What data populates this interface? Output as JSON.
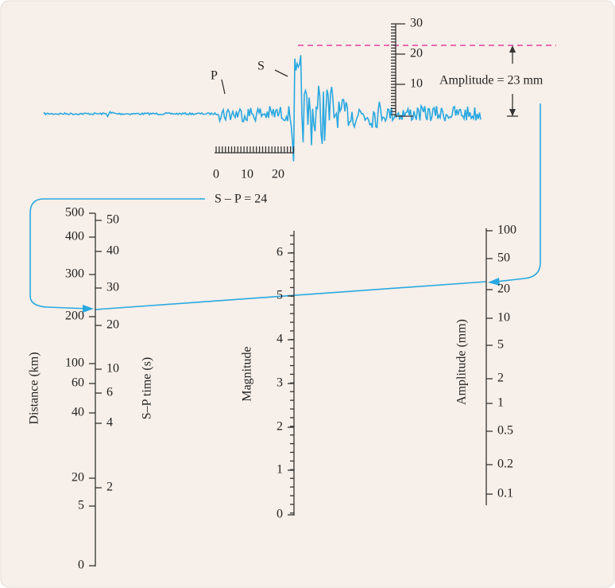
{
  "seismogram": {
    "p_label": "P",
    "s_label": "S",
    "amplitude_ticks": [
      30,
      20,
      10
    ],
    "time_ticks": [
      0,
      10,
      20
    ],
    "amplitude_note": "Amplitude = 23 mm",
    "sp_note": "S – P = 24"
  },
  "distance_scale": {
    "title": "Distance (km)",
    "labels": [
      500,
      400,
      300,
      200,
      100,
      60,
      40,
      20,
      5,
      0
    ]
  },
  "sp_scale": {
    "title": "S–P time (s)",
    "labels": [
      50,
      40,
      30,
      20,
      10,
      6,
      4,
      2
    ]
  },
  "magnitude_scale": {
    "title": "Magnitude",
    "labels": [
      6,
      5,
      4,
      3,
      2,
      1,
      0
    ]
  },
  "amplitude_scale": {
    "title": "Amplitude (mm)",
    "labels": [
      100,
      50,
      20,
      10,
      5,
      2,
      1,
      0.5,
      0.2,
      0.1
    ]
  }
}
